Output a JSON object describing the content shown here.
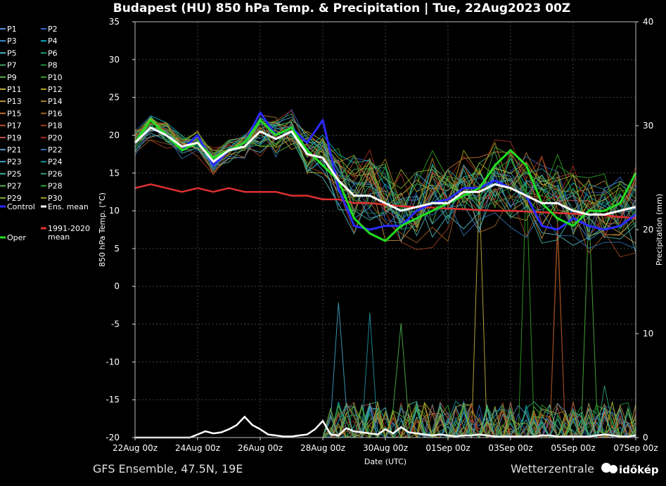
{
  "chart_data": {
    "type": "line",
    "title": "Budapest  (HU)  850 hPa Temp. & Precipitation | Tue, 22Aug2023 00Z",
    "xlabel": "Date (UTC)",
    "ylabel": "850 hPa Temp. (°C)",
    "y2label": "Precipitation (mm)",
    "ylim": [
      -20,
      35
    ],
    "y2lim": [
      0,
      40
    ],
    "yticks": [
      "35",
      "30",
      "25",
      "20",
      "15",
      "10",
      "5",
      "0",
      "-5",
      "-10",
      "-15",
      "-20"
    ],
    "y2ticks": [
      "40",
      "30",
      "20",
      "10",
      "0"
    ],
    "xticks": [
      "22Aug 00z",
      "24Aug 00z",
      "26Aug 00z",
      "28Aug 00z",
      "30Aug 00z",
      "01Sep 00z",
      "03Sep 00z",
      "05Sep 00z",
      "07Sep 00z"
    ],
    "grid": true,
    "legend_position": "left",
    "temp_x_days": [
      0,
      0.5,
      1,
      1.5,
      2,
      2.5,
      3,
      3.5,
      4,
      4.5,
      5,
      5.5,
      6,
      6.5,
      7,
      7.5,
      8,
      8.5,
      9,
      9.5,
      10,
      10.5,
      11,
      11.5,
      12,
      12.5,
      13,
      13.5,
      14,
      14.5,
      15,
      15.5,
      16
    ],
    "series": [
      {
        "name": "Ens. mean",
        "color": "#ffffff",
        "width": 3,
        "values": [
          19,
          21,
          20,
          18.5,
          19,
          16.5,
          18,
          18.5,
          20.5,
          19.5,
          20.5,
          17.5,
          17,
          14,
          12,
          12,
          11,
          10,
          10.5,
          11,
          11,
          12.5,
          12.5,
          13.5,
          13,
          12,
          11,
          11,
          10,
          9.5,
          9.5,
          10,
          10.5
        ]
      },
      {
        "name": "Control",
        "color": "#2a2aff",
        "width": 3,
        "values": [
          19,
          21,
          20,
          18,
          20,
          16,
          18,
          19,
          23,
          20,
          21,
          19,
          22,
          13,
          8,
          7.5,
          8,
          8,
          10,
          11,
          11.5,
          13,
          13,
          14,
          13,
          12,
          8,
          7.5,
          9,
          8,
          7.5,
          8,
          9.5
        ]
      },
      {
        "name": "Oper",
        "color": "#22dd22",
        "width": 3,
        "values": [
          19,
          22,
          20,
          18,
          19,
          17,
          18,
          19,
          22,
          20,
          21,
          18,
          16,
          14,
          9,
          7,
          6,
          8,
          9,
          10,
          11,
          12,
          13,
          16,
          18,
          16,
          11,
          9,
          8,
          10,
          10,
          11,
          15
        ]
      },
      {
        "name": "1991-2020\nmean",
        "color": "#e03030",
        "width": 2.5,
        "values": [
          13,
          13.5,
          13,
          12.5,
          13,
          12.5,
          13,
          12.5,
          12.5,
          12.5,
          12,
          12,
          11.5,
          11.5,
          11,
          11,
          10.8,
          10.6,
          10.5,
          10.4,
          10.3,
          10.2,
          10.1,
          10,
          10,
          9.9,
          9.8,
          9.7,
          9.6,
          9.5,
          9.4,
          9.2,
          9
        ]
      }
    ],
    "ensemble_members": [
      {
        "name": "P1",
        "color": "#4a90d9"
      },
      {
        "name": "P2",
        "color": "#2f5fc0"
      },
      {
        "name": "P3",
        "color": "#3a8fd0"
      },
      {
        "name": "P4",
        "color": "#00b0c0"
      },
      {
        "name": "P5",
        "color": "#50b8c0"
      },
      {
        "name": "P6",
        "color": "#20a080"
      },
      {
        "name": "P7",
        "color": "#40a060"
      },
      {
        "name": "P8",
        "color": "#209040"
      },
      {
        "name": "P9",
        "color": "#50b040"
      },
      {
        "name": "P10",
        "color": "#30a020"
      },
      {
        "name": "P11",
        "color": "#c0b040"
      },
      {
        "name": "P12",
        "color": "#b0a030"
      },
      {
        "name": "P13",
        "color": "#c09040"
      },
      {
        "name": "P14",
        "color": "#b08030"
      },
      {
        "name": "P15",
        "color": "#c07030"
      },
      {
        "name": "P16",
        "color": "#a06020"
      },
      {
        "name": "P17",
        "color": "#b05030"
      },
      {
        "name": "P18",
        "color": "#a04020"
      },
      {
        "name": "P19",
        "color": "#c05050"
      },
      {
        "name": "P20",
        "color": "#a03020"
      },
      {
        "name": "P21",
        "color": "#5090c0"
      },
      {
        "name": "P22",
        "color": "#3070b0"
      },
      {
        "name": "P23",
        "color": "#40a0c0"
      },
      {
        "name": "P24",
        "color": "#2090a0"
      },
      {
        "name": "P25",
        "color": "#40b0a0"
      },
      {
        "name": "P26",
        "color": "#30a070"
      },
      {
        "name": "P27",
        "color": "#50b050"
      },
      {
        "name": "P28",
        "color": "#30a030"
      },
      {
        "name": "P29",
        "color": "#80b030"
      },
      {
        "name": "P30",
        "color": "#a0a020"
      }
    ],
    "precip_mean_mm": [
      0,
      0,
      0,
      0,
      0,
      0,
      0,
      0,
      0.3,
      0.6,
      0.4,
      0.5,
      0.8,
      1.2,
      2,
      1.2,
      0.8,
      0.3,
      0.2,
      0.1,
      0.1,
      0.2,
      0.3,
      0.8,
      1.6,
      0.3,
      0.2,
      0.9,
      0.6,
      0.5,
      0.4,
      0.3,
      0.8,
      0.4,
      1,
      0.5,
      0.4,
      0.3,
      0.2,
      0.3,
      0.2,
      0.1,
      0.2,
      0.2,
      0.3,
      0.2,
      0.1,
      0.1,
      0.1,
      0.1,
      0.1,
      0.1,
      0.2,
      0.2,
      0.1,
      0.1,
      0.1,
      0.1,
      0.1,
      0.2,
      0.3,
      0.2,
      0.1,
      0.1,
      0.2
    ],
    "footer_left": "GFS Ensemble, 47.5N, 19E",
    "footer_right": "Wetterzentrale",
    "watermark": "időkép"
  }
}
